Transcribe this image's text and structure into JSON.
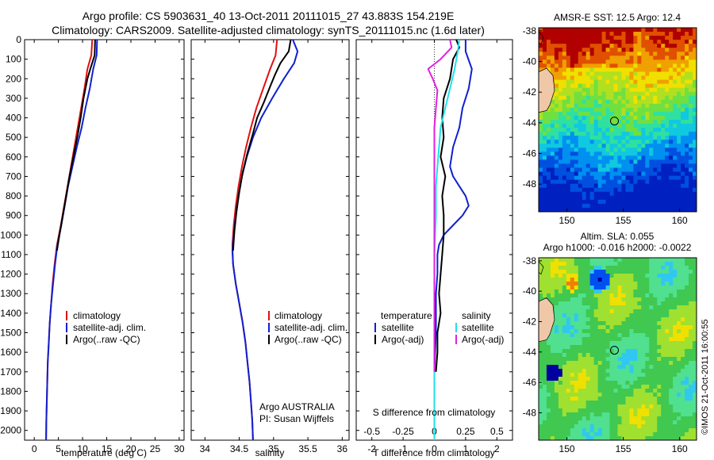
{
  "header": {
    "line1": "Argo profile: CS 5903631_40 13-Oct-2011 20111015_27 43.883S 154.219E",
    "line2": "Climatology: CARS2009. Satellite-adjusted climatology: synTS_20111015.nc (1.6d later)"
  },
  "colors": {
    "climatology": "#e01010",
    "satellite": "#1020d0",
    "argo": "#000000",
    "cyan": "#20e0e8",
    "magenta": "#e020e0"
  },
  "chart_data": [
    {
      "type": "line",
      "id": "temperature",
      "xlabel": "temperature (deg C)",
      "xlim": [
        -2,
        31
      ],
      "xticks": [
        0,
        5,
        10,
        15,
        20,
        25,
        30
      ],
      "ylim": [
        2050,
        0
      ],
      "yticks": [
        0,
        100,
        200,
        300,
        400,
        500,
        600,
        700,
        800,
        900,
        1000,
        1100,
        1200,
        1300,
        1400,
        1500,
        1600,
        1700,
        1800,
        1900,
        2000
      ],
      "legend": [
        "climatology",
        "satellite-adj. clim.",
        "Argo(..raw -QC)"
      ],
      "series": [
        {
          "name": "climatology",
          "color": "#e01010",
          "points": [
            [
              12.0,
              0
            ],
            [
              11.8,
              80
            ],
            [
              11.0,
              150
            ],
            [
              10.4,
              250
            ],
            [
              9.7,
              350
            ],
            [
              9.0,
              450
            ],
            [
              8.3,
              550
            ],
            [
              7.6,
              650
            ],
            [
              6.9,
              750
            ],
            [
              6.2,
              850
            ],
            [
              5.5,
              950
            ],
            [
              4.7,
              1050
            ],
            [
              4.2,
              1150
            ],
            [
              3.8,
              1250
            ],
            [
              3.5,
              1350
            ],
            [
              3.2,
              1450
            ],
            [
              3.0,
              1550
            ],
            [
              2.8,
              1650
            ],
            [
              2.7,
              1750
            ],
            [
              2.6,
              1850
            ],
            [
              2.5,
              1950
            ],
            [
              2.45,
              2050
            ]
          ]
        },
        {
          "name": "satellite-adj. clim.",
          "color": "#1020d0",
          "points": [
            [
              13.0,
              0
            ],
            [
              12.9,
              80
            ],
            [
              12.2,
              150
            ],
            [
              11.5,
              250
            ],
            [
              10.6,
              350
            ],
            [
              9.8,
              450
            ],
            [
              8.8,
              550
            ],
            [
              7.9,
              650
            ],
            [
              7.0,
              750
            ],
            [
              6.3,
              850
            ],
            [
              5.6,
              950
            ],
            [
              4.8,
              1050
            ],
            [
              4.3,
              1150
            ],
            [
              3.9,
              1250
            ],
            [
              3.5,
              1350
            ],
            [
              3.2,
              1450
            ],
            [
              3.0,
              1550
            ],
            [
              2.8,
              1650
            ],
            [
              2.7,
              1750
            ],
            [
              2.6,
              1850
            ],
            [
              2.5,
              1950
            ],
            [
              2.45,
              2050
            ]
          ]
        },
        {
          "name": "Argo(..raw -QC)",
          "color": "#000000",
          "points": [
            [
              12.6,
              0
            ],
            [
              12.5,
              80
            ],
            [
              11.6,
              150
            ],
            [
              11.0,
              200
            ],
            [
              10.2,
              300
            ],
            [
              9.6,
              400
            ],
            [
              8.9,
              500
            ],
            [
              8.1,
              600
            ],
            [
              7.3,
              700
            ],
            [
              6.6,
              800
            ],
            [
              5.9,
              900
            ],
            [
              5.2,
              1000
            ],
            [
              4.7,
              1080
            ]
          ]
        }
      ]
    },
    {
      "type": "line",
      "id": "salinity",
      "xlabel": "salinity",
      "xlim": [
        33.8,
        36.1
      ],
      "xticks": [
        34,
        34.5,
        35,
        35.5,
        36
      ],
      "ylim": [
        2050,
        0
      ],
      "legend": [
        "climatology",
        "satellite-adj. clim.",
        "Argo(..raw -QC)"
      ],
      "annotations": [
        "Argo AUSTRALIA",
        "PI: Susan Wijffels"
      ],
      "series": [
        {
          "name": "climatology",
          "color": "#e01010",
          "points": [
            [
              35.05,
              0
            ],
            [
              35.03,
              80
            ],
            [
              34.95,
              150
            ],
            [
              34.85,
              250
            ],
            [
              34.75,
              350
            ],
            [
              34.67,
              450
            ],
            [
              34.6,
              550
            ],
            [
              34.54,
              650
            ],
            [
              34.49,
              750
            ],
            [
              34.45,
              850
            ],
            [
              34.42,
              950
            ],
            [
              34.4,
              1050
            ],
            [
              34.41,
              1150
            ],
            [
              34.45,
              1250
            ],
            [
              34.5,
              1350
            ],
            [
              34.55,
              1450
            ],
            [
              34.59,
              1550
            ],
            [
              34.62,
              1650
            ],
            [
              34.65,
              1750
            ],
            [
              34.67,
              1850
            ],
            [
              34.69,
              1950
            ],
            [
              34.7,
              2050
            ]
          ]
        },
        {
          "name": "satellite-adj. clim.",
          "color": "#1020d0",
          "points": [
            [
              35.28,
              0
            ],
            [
              35.35,
              60
            ],
            [
              35.3,
              120
            ],
            [
              35.15,
              200
            ],
            [
              34.98,
              300
            ],
            [
              34.82,
              400
            ],
            [
              34.7,
              500
            ],
            [
              34.61,
              600
            ],
            [
              34.54,
              700
            ],
            [
              34.49,
              800
            ],
            [
              34.45,
              900
            ],
            [
              34.42,
              1000
            ],
            [
              34.4,
              1080
            ],
            [
              34.41,
              1150
            ],
            [
              34.45,
              1250
            ],
            [
              34.5,
              1350
            ],
            [
              34.55,
              1450
            ],
            [
              34.59,
              1550
            ],
            [
              34.62,
              1650
            ],
            [
              34.65,
              1750
            ],
            [
              34.67,
              1850
            ],
            [
              34.69,
              1950
            ],
            [
              34.7,
              2050
            ]
          ]
        },
        {
          "name": "Argo(..raw -QC)",
          "color": "#000000",
          "points": [
            [
              35.25,
              0
            ],
            [
              35.22,
              60
            ],
            [
              35.1,
              120
            ],
            [
              35.02,
              180
            ],
            [
              34.95,
              240
            ],
            [
              34.86,
              320
            ],
            [
              34.76,
              400
            ],
            [
              34.7,
              480
            ],
            [
              34.62,
              580
            ],
            [
              34.55,
              680
            ],
            [
              34.5,
              780
            ],
            [
              34.46,
              880
            ],
            [
              34.43,
              980
            ],
            [
              34.41,
              1080
            ]
          ]
        }
      ]
    },
    {
      "type": "line",
      "id": "differences",
      "xlabel": "T difference from climatology",
      "xlabel_top": "S difference from climatology",
      "xlim": [
        -2.5,
        2.5
      ],
      "xticks": [
        -2,
        -1,
        0,
        1,
        2
      ],
      "xticks_top": [
        "-0.5",
        "-0.25",
        "0",
        "0.25",
        "0.5"
      ],
      "ylim": [
        2050,
        0
      ],
      "legend": {
        "temperature": [
          "satellite",
          "Argo(-adj)"
        ],
        "salinity": [
          "satellite",
          "Argo(-adj)"
        ]
      },
      "legend_headers": [
        "temperature",
        "salinity"
      ],
      "series": [
        {
          "name": "temperature satellite",
          "color": "#1020d0",
          "points": [
            [
              1.0,
              0
            ],
            [
              1.0,
              60
            ],
            [
              1.2,
              150
            ],
            [
              1.1,
              250
            ],
            [
              0.9,
              350
            ],
            [
              0.8,
              450
            ],
            [
              0.6,
              550
            ],
            [
              0.5,
              650
            ],
            [
              0.6,
              700
            ],
            [
              0.8,
              750
            ],
            [
              1.0,
              800
            ],
            [
              1.1,
              850
            ],
            [
              0.9,
              900
            ],
            [
              0.6,
              950
            ],
            [
              0.3,
              1000
            ],
            [
              0.15,
              1050
            ],
            [
              0.1,
              1100
            ],
            [
              0.1,
              1200
            ],
            [
              0.05,
              1300
            ],
            [
              0.05,
              1500
            ],
            [
              0.0,
              1700
            ],
            [
              0.0,
              2050
            ]
          ]
        },
        {
          "name": "temperature Argo(-adj)",
          "color": "#000000",
          "points": [
            [
              0.7,
              0
            ],
            [
              0.8,
              40
            ],
            [
              0.6,
              100
            ],
            [
              0.5,
              200
            ],
            [
              0.3,
              300
            ],
            [
              0.25,
              400
            ],
            [
              0.3,
              500
            ],
            [
              0.2,
              600
            ],
            [
              0.35,
              700
            ],
            [
              0.25,
              800
            ],
            [
              0.3,
              900
            ],
            [
              0.3,
              1000
            ],
            [
              0.25,
              1100
            ],
            [
              0.2,
              1200
            ],
            [
              0.15,
              1300
            ],
            [
              0.2,
              1400
            ],
            [
              0.1,
              1500
            ],
            [
              0.1,
              1600
            ],
            [
              0.05,
              1700
            ]
          ]
        },
        {
          "name": "salinity satellite",
          "color": "#20e0e8",
          "points": [
            [
              0.8,
              0
            ],
            [
              0.75,
              60
            ],
            [
              0.65,
              150
            ],
            [
              0.5,
              250
            ],
            [
              0.35,
              350
            ],
            [
              0.2,
              450
            ],
            [
              0.15,
              550
            ],
            [
              0.1,
              650
            ],
            [
              0.05,
              750
            ],
            [
              0.05,
              900
            ],
            [
              0.0,
              1100
            ],
            [
              0.0,
              2050
            ]
          ]
        },
        {
          "name": "salinity Argo(-adj)",
          "color": "#e020e0",
          "points": [
            [
              0.5,
              0
            ],
            [
              0.55,
              40
            ],
            [
              0.2,
              100
            ],
            [
              -0.2,
              150
            ],
            [
              -0.05,
              200
            ],
            [
              0.1,
              260
            ],
            [
              0.05,
              350
            ],
            [
              0.0,
              450
            ],
            [
              0.0,
              600
            ],
            [
              0.0,
              800
            ],
            [
              0.0,
              1000
            ],
            [
              0.0,
              1200
            ],
            [
              0.0,
              1400
            ],
            [
              0.0,
              1600
            ],
            [
              0.0,
              1700
            ]
          ]
        }
      ]
    },
    {
      "type": "heatmap",
      "id": "sst-map",
      "title": "AMSR-E SST: 12.5 Argo: 12.4",
      "xlim": [
        147.5,
        161.5
      ],
      "ylim": [
        -49.8,
        -37.8
      ],
      "xticks": [
        150,
        155,
        160
      ],
      "yticks": [
        -38,
        -40,
        -42,
        -44,
        -46,
        -48
      ],
      "marker": [
        154.219,
        -43.883
      ]
    },
    {
      "type": "heatmap",
      "id": "sla-map",
      "title": "Altim. SLA: 0.055",
      "subtitle": "Argo h1000: -0.016 h2000: -0.0022",
      "xlim": [
        147.5,
        161.5
      ],
      "ylim": [
        -49.8,
        -37.8
      ],
      "xticks": [
        150,
        155,
        160
      ],
      "yticks": [
        -38,
        -40,
        -42,
        -44,
        -46,
        -48
      ],
      "marker": [
        154.219,
        -43.883
      ]
    }
  ],
  "footer": {
    "stamp": "©IMOS 21-Oct-2011 16:00:55"
  }
}
